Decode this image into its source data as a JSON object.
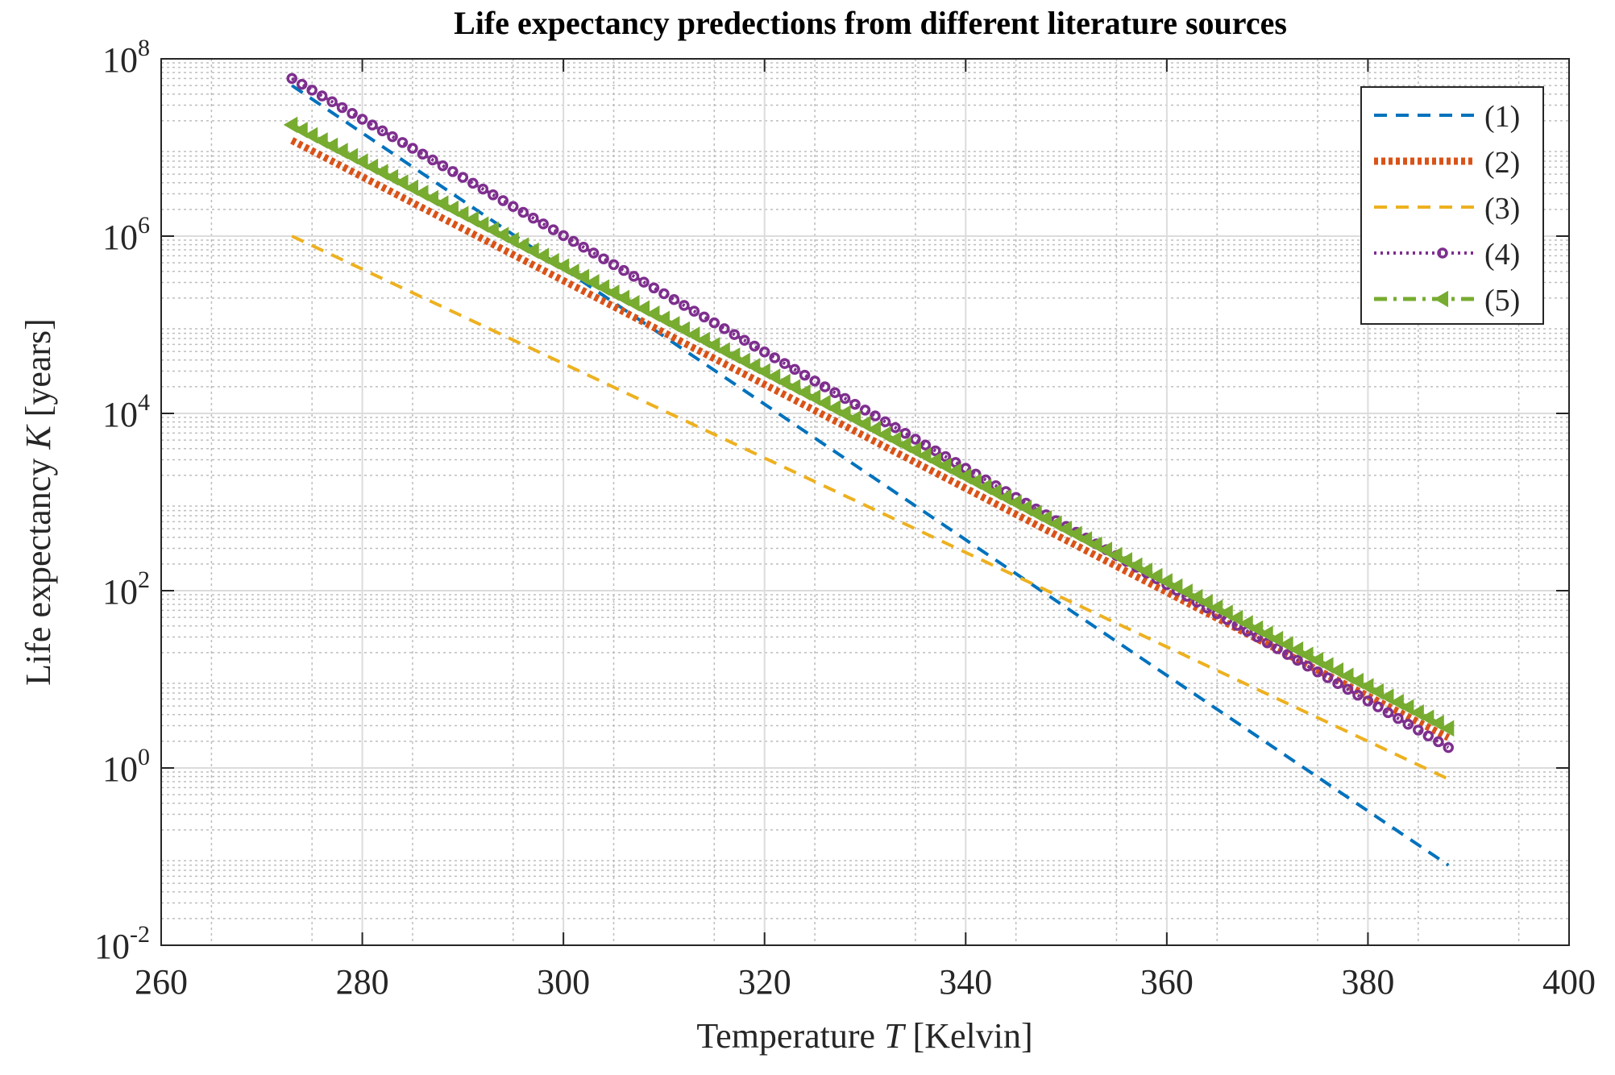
{
  "chart_data": {
    "type": "line",
    "title": "Life expectancy predections from different literature sources",
    "xlabel": "Temperature T [Kelvin]",
    "ylabel": "Life expectancy K [years]",
    "xlabel_parts": {
      "pre": "Temperature ",
      "var": "T",
      "post": " [Kelvin]"
    },
    "ylabel_parts": {
      "pre": "Life expectancy ",
      "var": "K",
      "post": " [years]"
    },
    "xlim": [
      260,
      400
    ],
    "ylim": [
      0.01,
      100000000
    ],
    "yscale": "log",
    "x_ticks": [
      260,
      280,
      300,
      320,
      340,
      360,
      380,
      400
    ],
    "y_tick_exponents": [
      -2,
      0,
      2,
      4,
      6,
      8
    ],
    "grid": true,
    "minor_grid": true,
    "legend_position": "top-right",
    "series": [
      {
        "name": "(1)",
        "color": "#0072BD",
        "style": "dashed",
        "marker": "none",
        "x_start": 273,
        "x_end": 388,
        "y_start": 50000000,
        "y_end": 0.08
      },
      {
        "name": "(2)",
        "color": "#D95319",
        "style": "dotted-thick",
        "marker": "none",
        "x_start": 273,
        "x_end": 388,
        "y_start": 12000000,
        "y_end": 2.2
      },
      {
        "name": "(3)",
        "color": "#EDB120",
        "style": "dashed",
        "marker": "none",
        "x_start": 273,
        "x_end": 388,
        "y_start": 1000000,
        "y_end": 0.75
      },
      {
        "name": "(4)",
        "color": "#7E2F8E",
        "style": "dotted",
        "marker": "circle",
        "x_start": 273,
        "x_end": 388,
        "y_start": 60000000,
        "y_end": 1.7
      },
      {
        "name": "(5)",
        "color": "#77AC30",
        "style": "dashdot",
        "marker": "triangle-left",
        "x_start": 273,
        "x_end": 388,
        "y_start": 18000000,
        "y_end": 2.8
      }
    ]
  }
}
